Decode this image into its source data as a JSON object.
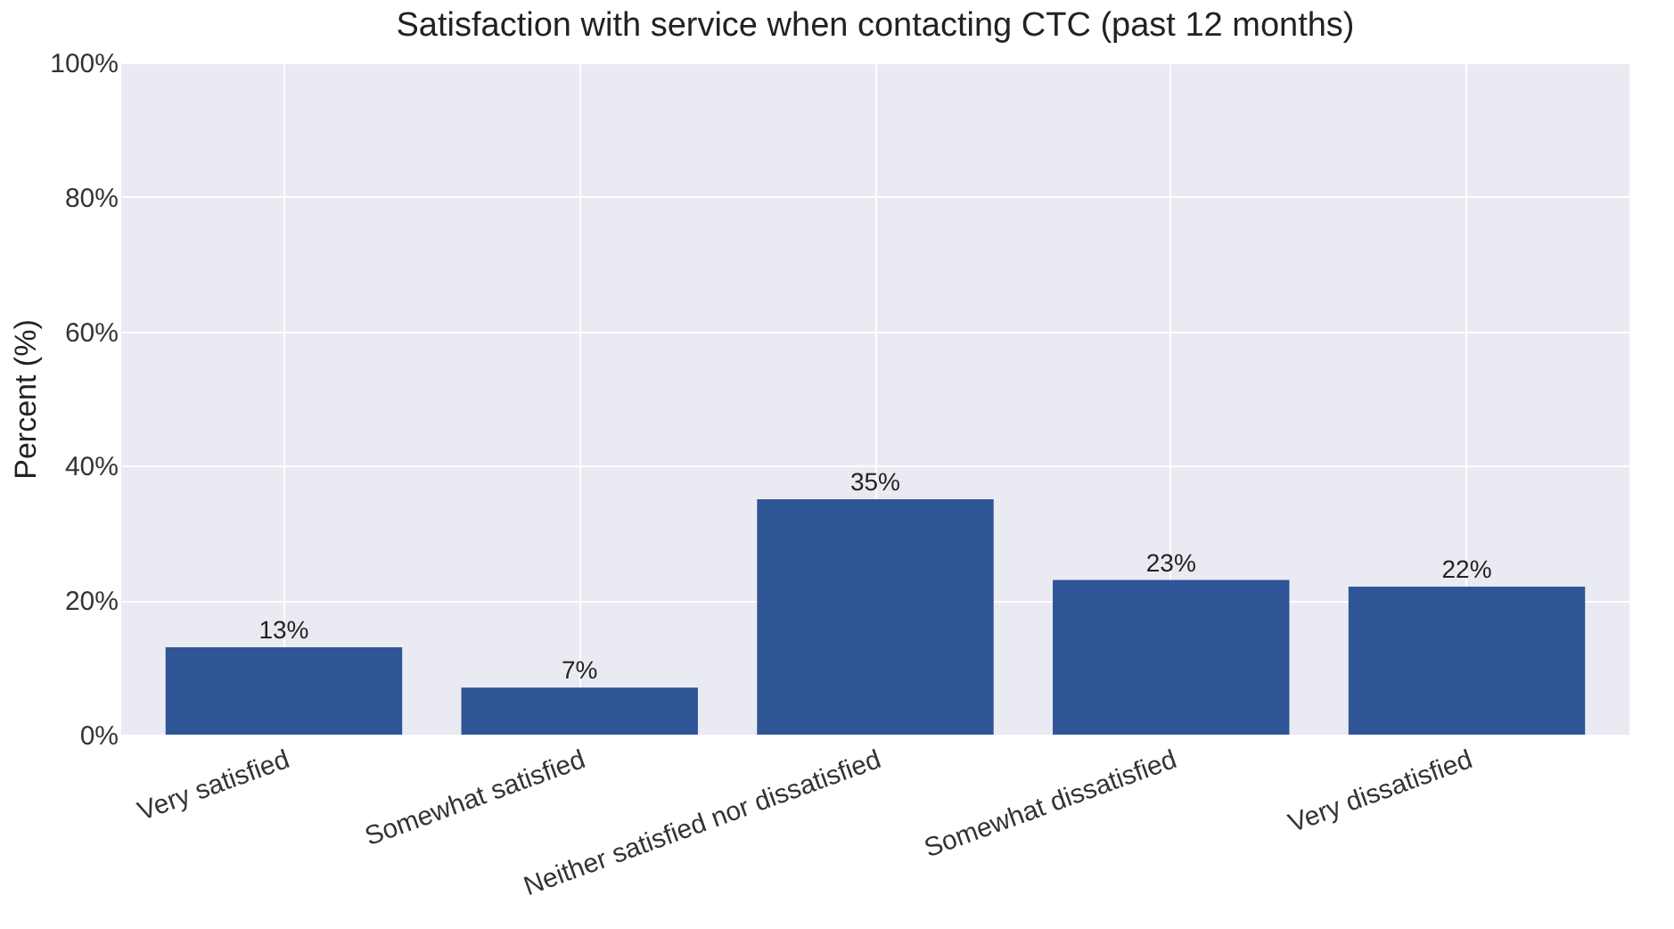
{
  "chart_data": {
    "type": "bar",
    "title": "Satisfaction with service when contacting CTC (past 12 months)",
    "ylabel": "Percent (%)",
    "categories": [
      "Very satisfied",
      "Somewhat satisfied",
      "Neither satisfied nor dissatisfied",
      "Somewhat dissatisfied",
      "Very dissatisfied"
    ],
    "values": [
      13,
      7,
      35,
      23,
      22
    ],
    "value_labels": [
      "13%",
      "7%",
      "35%",
      "23%",
      "22%"
    ],
    "color": "#2f5597",
    "ylim": [
      0,
      100
    ],
    "yticks": [
      {
        "value": 0,
        "label": "0%"
      },
      {
        "value": 20,
        "label": "20%"
      },
      {
        "value": 40,
        "label": "40%"
      },
      {
        "value": 60,
        "label": "60%"
      },
      {
        "value": 80,
        "label": "80%"
      },
      {
        "value": 100,
        "label": "100%"
      }
    ],
    "grid": true
  }
}
